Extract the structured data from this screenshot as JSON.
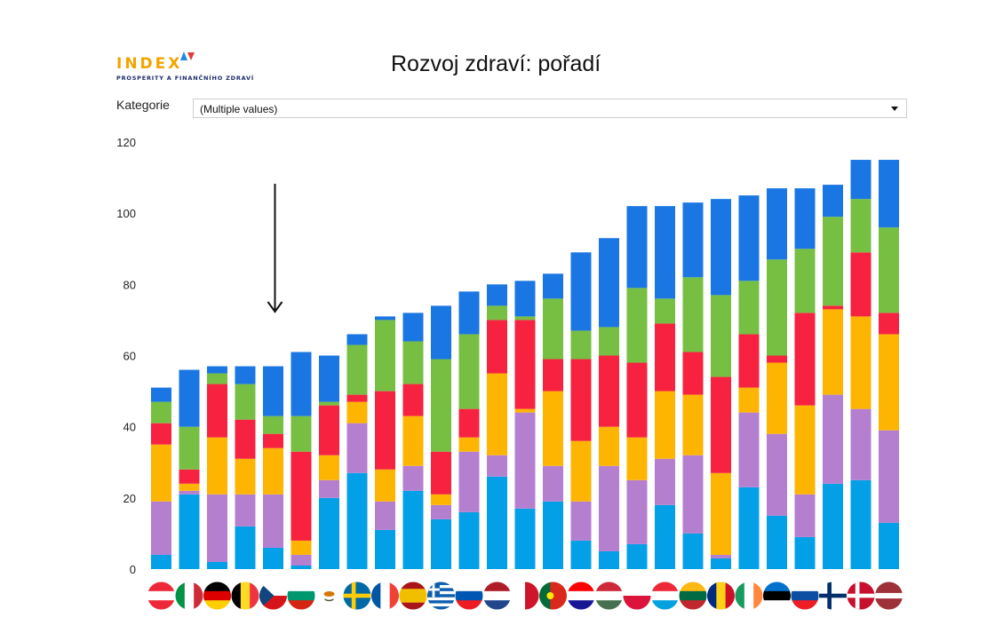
{
  "logo": {
    "word": "INDEX",
    "subtitle": "PROSPERITY A FINANČNÍHO ZDRAVÍ",
    "mark_colors": [
      "#1e88e5",
      "#e53935"
    ]
  },
  "title": "Rozvoj zdraví: pořadí",
  "filter": {
    "label": "Kategorie",
    "value": "(Multiple values)"
  },
  "colors": {
    "light_blue": "#03a0e8",
    "purple": "#b57fcf",
    "orange": "#feb502",
    "red": "#f7223f",
    "green": "#77bf42",
    "blue": "#1a76e3",
    "arrow": "#111111"
  },
  "annotation": {
    "type": "down-arrow",
    "points_to_category": "Czech Republic"
  },
  "chart_data": {
    "type": "bar",
    "stacked": true,
    "ylim": [
      0,
      120
    ],
    "yticks": [
      0,
      20,
      40,
      60,
      80,
      100,
      120
    ],
    "grid": false,
    "legend": "none",
    "categories": [
      {
        "name": "Austria",
        "flag": "austria-flag-icon"
      },
      {
        "name": "Italy",
        "flag": "italy-flag-icon"
      },
      {
        "name": "Germany",
        "flag": "germany-flag-icon"
      },
      {
        "name": "Belgium",
        "flag": "belgium-flag-icon"
      },
      {
        "name": "Czech Republic",
        "flag": "czech-flag-icon"
      },
      {
        "name": "Bulgaria",
        "flag": "bulgaria-flag-icon"
      },
      {
        "name": "Cyprus",
        "flag": "cyprus-flag-icon"
      },
      {
        "name": "Sweden",
        "flag": "sweden-flag-icon"
      },
      {
        "name": "France",
        "flag": "france-flag-icon"
      },
      {
        "name": "Spain",
        "flag": "spain-flag-icon"
      },
      {
        "name": "Greece",
        "flag": "greece-flag-icon"
      },
      {
        "name": "Slovenia",
        "flag": "slovenia-flag-icon"
      },
      {
        "name": "Netherlands",
        "flag": "netherlands-flag-icon"
      },
      {
        "name": "Malta",
        "flag": "malta-flag-icon"
      },
      {
        "name": "Portugal",
        "flag": "portugal-flag-icon"
      },
      {
        "name": "Croatia",
        "flag": "croatia-flag-icon"
      },
      {
        "name": "Hungary",
        "flag": "hungary-flag-icon"
      },
      {
        "name": "Poland",
        "flag": "poland-flag-icon"
      },
      {
        "name": "Luxembourg",
        "flag": "luxembourg-flag-icon"
      },
      {
        "name": "Lithuania",
        "flag": "lithuania-flag-icon"
      },
      {
        "name": "Romania",
        "flag": "romania-flag-icon"
      },
      {
        "name": "Ireland",
        "flag": "ireland-flag-icon"
      },
      {
        "name": "Estonia",
        "flag": "estonia-flag-icon"
      },
      {
        "name": "Slovakia",
        "flag": "slovakia-flag-icon"
      },
      {
        "name": "Finland",
        "flag": "finland-flag-icon"
      },
      {
        "name": "Denmark",
        "flag": "denmark-flag-icon"
      },
      {
        "name": "Latvia",
        "flag": "latvia-flag-icon"
      }
    ],
    "series": [
      {
        "color_key": "light_blue",
        "values": [
          4,
          21,
          2,
          12,
          6,
          1,
          20,
          27,
          11,
          22,
          14,
          16,
          26,
          17,
          19,
          8,
          5,
          7,
          18,
          10,
          3,
          23,
          15,
          9,
          24,
          25,
          13
        ]
      },
      {
        "color_key": "purple",
        "values": [
          15,
          1,
          19,
          9,
          15,
          3,
          5,
          14,
          8,
          7,
          4,
          17,
          6,
          27,
          10,
          11,
          24,
          18,
          13,
          22,
          1,
          21,
          23,
          12,
          25,
          20,
          26
        ]
      },
      {
        "color_key": "orange",
        "values": [
          16,
          2,
          16,
          10,
          13,
          4,
          7,
          6,
          9,
          14,
          3,
          4,
          23,
          1,
          21,
          17,
          11,
          12,
          19,
          17,
          23,
          7,
          20,
          25,
          24,
          26,
          27
        ]
      },
      {
        "color_key": "red",
        "values": [
          6,
          4,
          15,
          11,
          4,
          25,
          14,
          2,
          22,
          9,
          12,
          8,
          15,
          25,
          9,
          23,
          20,
          21,
          19,
          12,
          27,
          15,
          2,
          26,
          1,
          18,
          6
        ]
      },
      {
        "color_key": "green",
        "values": [
          6,
          12,
          3,
          10,
          5,
          10,
          1,
          14,
          20,
          12,
          26,
          21,
          4,
          1,
          17,
          8,
          8,
          21,
          7,
          21,
          23,
          15,
          27,
          18,
          25,
          15,
          24
        ]
      },
      {
        "color_key": "blue",
        "values": [
          4,
          16,
          2,
          5,
          14,
          18,
          13,
          3,
          1,
          8,
          15,
          12,
          6,
          10,
          7,
          22,
          25,
          23,
          26,
          21,
          27,
          24,
          20,
          17,
          9,
          11,
          19
        ]
      }
    ]
  }
}
